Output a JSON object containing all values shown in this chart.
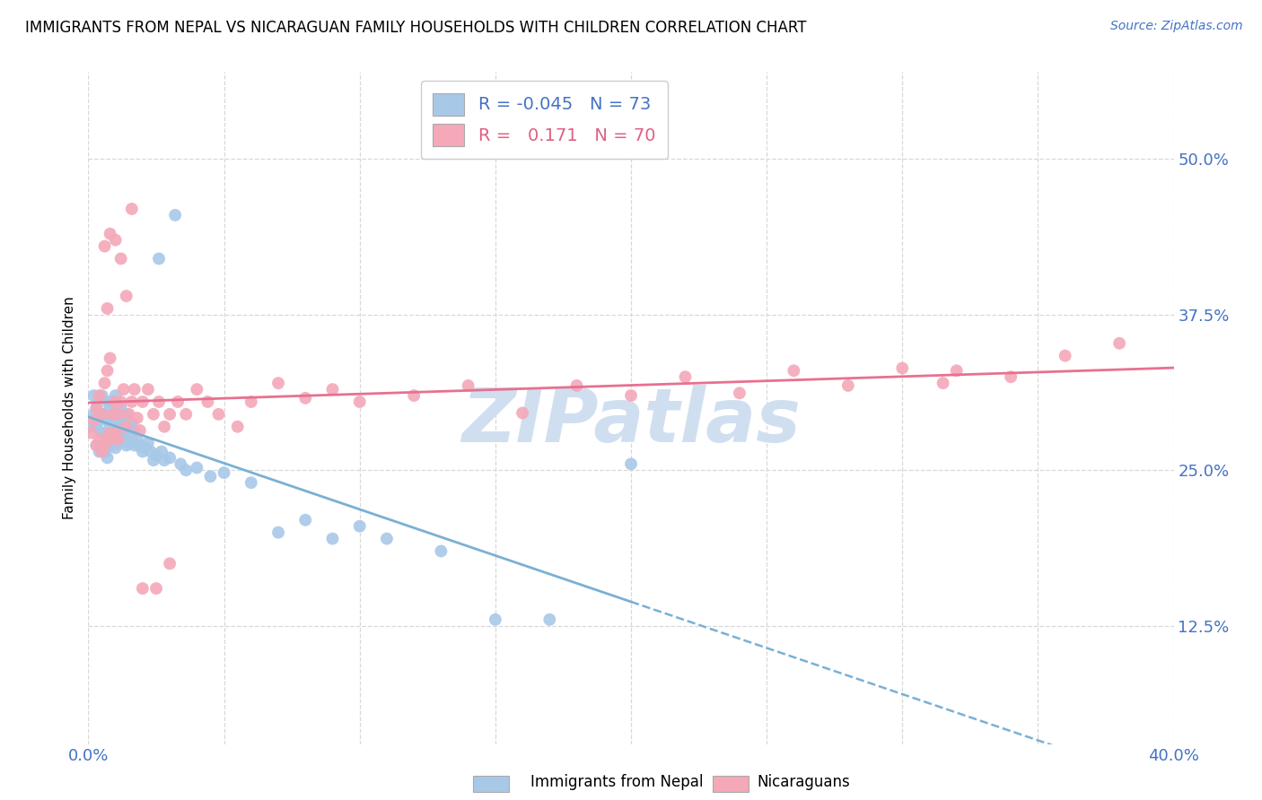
{
  "title": "IMMIGRANTS FROM NEPAL VS NICARAGUAN FAMILY HOUSEHOLDS WITH CHILDREN CORRELATION CHART",
  "source": "Source: ZipAtlas.com",
  "ylabel": "Family Households with Children",
  "ytick_vals": [
    0.125,
    0.25,
    0.375,
    0.5
  ],
  "ytick_labels": [
    "12.5%",
    "25.0%",
    "37.5%",
    "50.0%"
  ],
  "xlim": [
    0.0,
    0.4
  ],
  "ylim": [
    0.03,
    0.57
  ],
  "legend_label1": "Immigrants from Nepal",
  "legend_label2": "Nicaraguans",
  "R1": "-0.045",
  "N1": "73",
  "R2": "0.171",
  "N2": "70",
  "color_blue": "#a8c8e8",
  "color_pink": "#f4a8b8",
  "color_blue_line": "#7ab0d4",
  "color_pink_line": "#e87090",
  "watermark_color": "#d0dff0",
  "grid_color": "#d8d8d8",
  "tick_color": "#4472c4",
  "title_color": "#000000",
  "source_color": "#4472c4",
  "nepal_x": [
    0.001,
    0.002,
    0.002,
    0.003,
    0.003,
    0.003,
    0.004,
    0.004,
    0.005,
    0.005,
    0.005,
    0.006,
    0.006,
    0.006,
    0.007,
    0.007,
    0.007,
    0.007,
    0.008,
    0.008,
    0.008,
    0.009,
    0.009,
    0.009,
    0.01,
    0.01,
    0.01,
    0.01,
    0.011,
    0.011,
    0.011,
    0.012,
    0.012,
    0.012,
    0.013,
    0.013,
    0.014,
    0.014,
    0.014,
    0.015,
    0.015,
    0.016,
    0.016,
    0.017,
    0.017,
    0.018,
    0.019,
    0.02,
    0.021,
    0.022,
    0.023,
    0.024,
    0.025,
    0.026,
    0.027,
    0.028,
    0.03,
    0.032,
    0.034,
    0.036,
    0.04,
    0.045,
    0.05,
    0.06,
    0.07,
    0.08,
    0.09,
    0.1,
    0.11,
    0.13,
    0.15,
    0.17,
    0.2
  ],
  "nepal_y": [
    0.285,
    0.295,
    0.31,
    0.27,
    0.285,
    0.3,
    0.265,
    0.29,
    0.28,
    0.295,
    0.31,
    0.265,
    0.28,
    0.295,
    0.26,
    0.275,
    0.29,
    0.305,
    0.27,
    0.285,
    0.3,
    0.275,
    0.29,
    0.305,
    0.268,
    0.28,
    0.295,
    0.31,
    0.272,
    0.285,
    0.295,
    0.275,
    0.288,
    0.3,
    0.278,
    0.292,
    0.27,
    0.282,
    0.295,
    0.272,
    0.285,
    0.275,
    0.288,
    0.27,
    0.282,
    0.275,
    0.27,
    0.265,
    0.268,
    0.272,
    0.265,
    0.258,
    0.262,
    0.42,
    0.265,
    0.258,
    0.26,
    0.455,
    0.255,
    0.25,
    0.252,
    0.245,
    0.248,
    0.24,
    0.2,
    0.21,
    0.195,
    0.205,
    0.195,
    0.185,
    0.13,
    0.13,
    0.255
  ],
  "nica_x": [
    0.001,
    0.002,
    0.003,
    0.003,
    0.004,
    0.004,
    0.005,
    0.005,
    0.006,
    0.006,
    0.007,
    0.007,
    0.008,
    0.008,
    0.009,
    0.009,
    0.01,
    0.01,
    0.011,
    0.011,
    0.012,
    0.013,
    0.014,
    0.015,
    0.016,
    0.017,
    0.018,
    0.019,
    0.02,
    0.022,
    0.024,
    0.026,
    0.028,
    0.03,
    0.033,
    0.036,
    0.04,
    0.044,
    0.048,
    0.055,
    0.06,
    0.07,
    0.08,
    0.09,
    0.1,
    0.12,
    0.14,
    0.16,
    0.18,
    0.2,
    0.22,
    0.24,
    0.26,
    0.28,
    0.3,
    0.315,
    0.32,
    0.34,
    0.36,
    0.38,
    0.006,
    0.007,
    0.008,
    0.01,
    0.012,
    0.014,
    0.016,
    0.02,
    0.025,
    0.03
  ],
  "nica_y": [
    0.28,
    0.29,
    0.27,
    0.3,
    0.275,
    0.31,
    0.265,
    0.295,
    0.27,
    0.32,
    0.275,
    0.33,
    0.28,
    0.34,
    0.275,
    0.295,
    0.28,
    0.305,
    0.275,
    0.295,
    0.305,
    0.315,
    0.285,
    0.295,
    0.305,
    0.315,
    0.292,
    0.282,
    0.305,
    0.315,
    0.295,
    0.305,
    0.285,
    0.295,
    0.305,
    0.295,
    0.315,
    0.305,
    0.295,
    0.285,
    0.305,
    0.32,
    0.308,
    0.315,
    0.305,
    0.31,
    0.318,
    0.296,
    0.318,
    0.31,
    0.325,
    0.312,
    0.33,
    0.318,
    0.332,
    0.32,
    0.33,
    0.325,
    0.342,
    0.352,
    0.43,
    0.38,
    0.44,
    0.435,
    0.42,
    0.39,
    0.46,
    0.155,
    0.155,
    0.175
  ]
}
